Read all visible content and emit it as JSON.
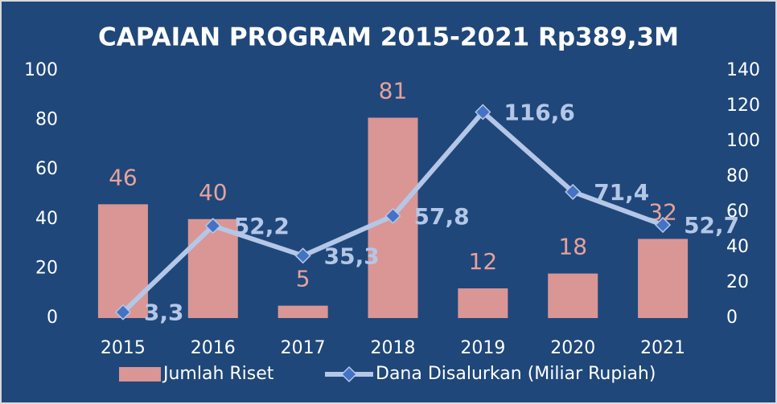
{
  "chart_data": {
    "type": "bar_line",
    "title": "CAPAIAN PROGRAM 2015-2021 Rp389,3M",
    "categories": [
      "2015",
      "2016",
      "2017",
      "2018",
      "2019",
      "2020",
      "2021"
    ],
    "series": [
      {
        "name": "Jumlah Riset",
        "type": "bar",
        "color": "#d99694",
        "values": [
          46,
          40,
          5,
          81,
          12,
          18,
          32
        ]
      },
      {
        "name": "Dana Disalurkan (Miliar Rupiah)",
        "type": "line",
        "axis": "y2",
        "color": "#b4c7e7",
        "marker_color": "#4472c4",
        "values": [
          3.3,
          52.2,
          35.3,
          57.8,
          116.6,
          71.4,
          52.7
        ],
        "value_labels": [
          "3,3",
          "52,2",
          "35,3",
          "57,8",
          "116,6",
          "71,4",
          "52,7"
        ]
      }
    ],
    "ylim": [
      0,
      100
    ],
    "yticks": [
      0,
      20,
      40,
      60,
      80,
      100
    ],
    "y2lim": [
      0,
      140
    ],
    "y2ticks": [
      0,
      20,
      40,
      60,
      80,
      100,
      120,
      140
    ],
    "grid": false,
    "legend": "bottom"
  }
}
